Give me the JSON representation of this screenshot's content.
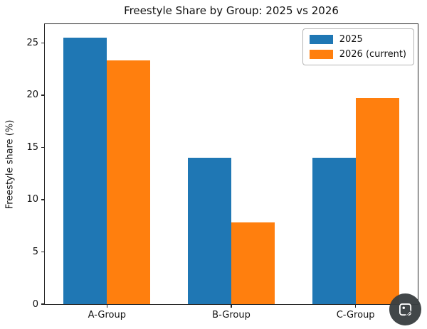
{
  "chart_data": {
    "type": "bar",
    "title": "Freestyle Share by Group: 2025 vs 2026",
    "ylabel": "Freestyle share (%)",
    "xlabel": "",
    "categories": [
      "A-Group",
      "B-Group",
      "C-Group"
    ],
    "series": [
      {
        "name": "2025",
        "color": "#1f77b4",
        "values": [
          25.5,
          14.0,
          14.0
        ]
      },
      {
        "name": "2026 (current)",
        "color": "#ff7f0e",
        "values": [
          23.3,
          7.8,
          19.7
        ]
      }
    ],
    "yticks": [
      0,
      5,
      10,
      15,
      20,
      25
    ],
    "ylim": [
      0,
      26.8
    ],
    "grid": false,
    "legend_position": "upper right",
    "axis_color": "#262626",
    "background": "#ffffff"
  },
  "overlay": {
    "edit_badge": {
      "icon": "image-edit-icon"
    }
  }
}
